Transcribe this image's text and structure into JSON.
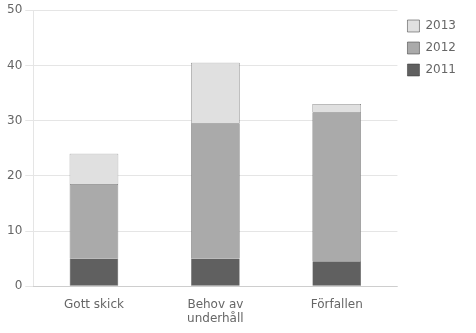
{
  "chart_data": {
    "type": "bar",
    "stacked": true,
    "categories": [
      "Gott skick",
      "Behov av\nunderhåll",
      "Förfallen"
    ],
    "series": [
      {
        "name": "2011",
        "color": "#606060",
        "values": [
          5,
          5,
          4.5
        ]
      },
      {
        "name": "2012",
        "color": "#aaaaaa",
        "values": [
          13.5,
          24.5,
          27
        ]
      },
      {
        "name": "2013",
        "color": "#e0e0e0",
        "values": [
          5.5,
          11,
          1.5
        ]
      }
    ],
    "ylim": [
      0,
      50
    ],
    "yticks": [
      0,
      10,
      20,
      30,
      40,
      50
    ],
    "grid": true,
    "legend": "right"
  }
}
